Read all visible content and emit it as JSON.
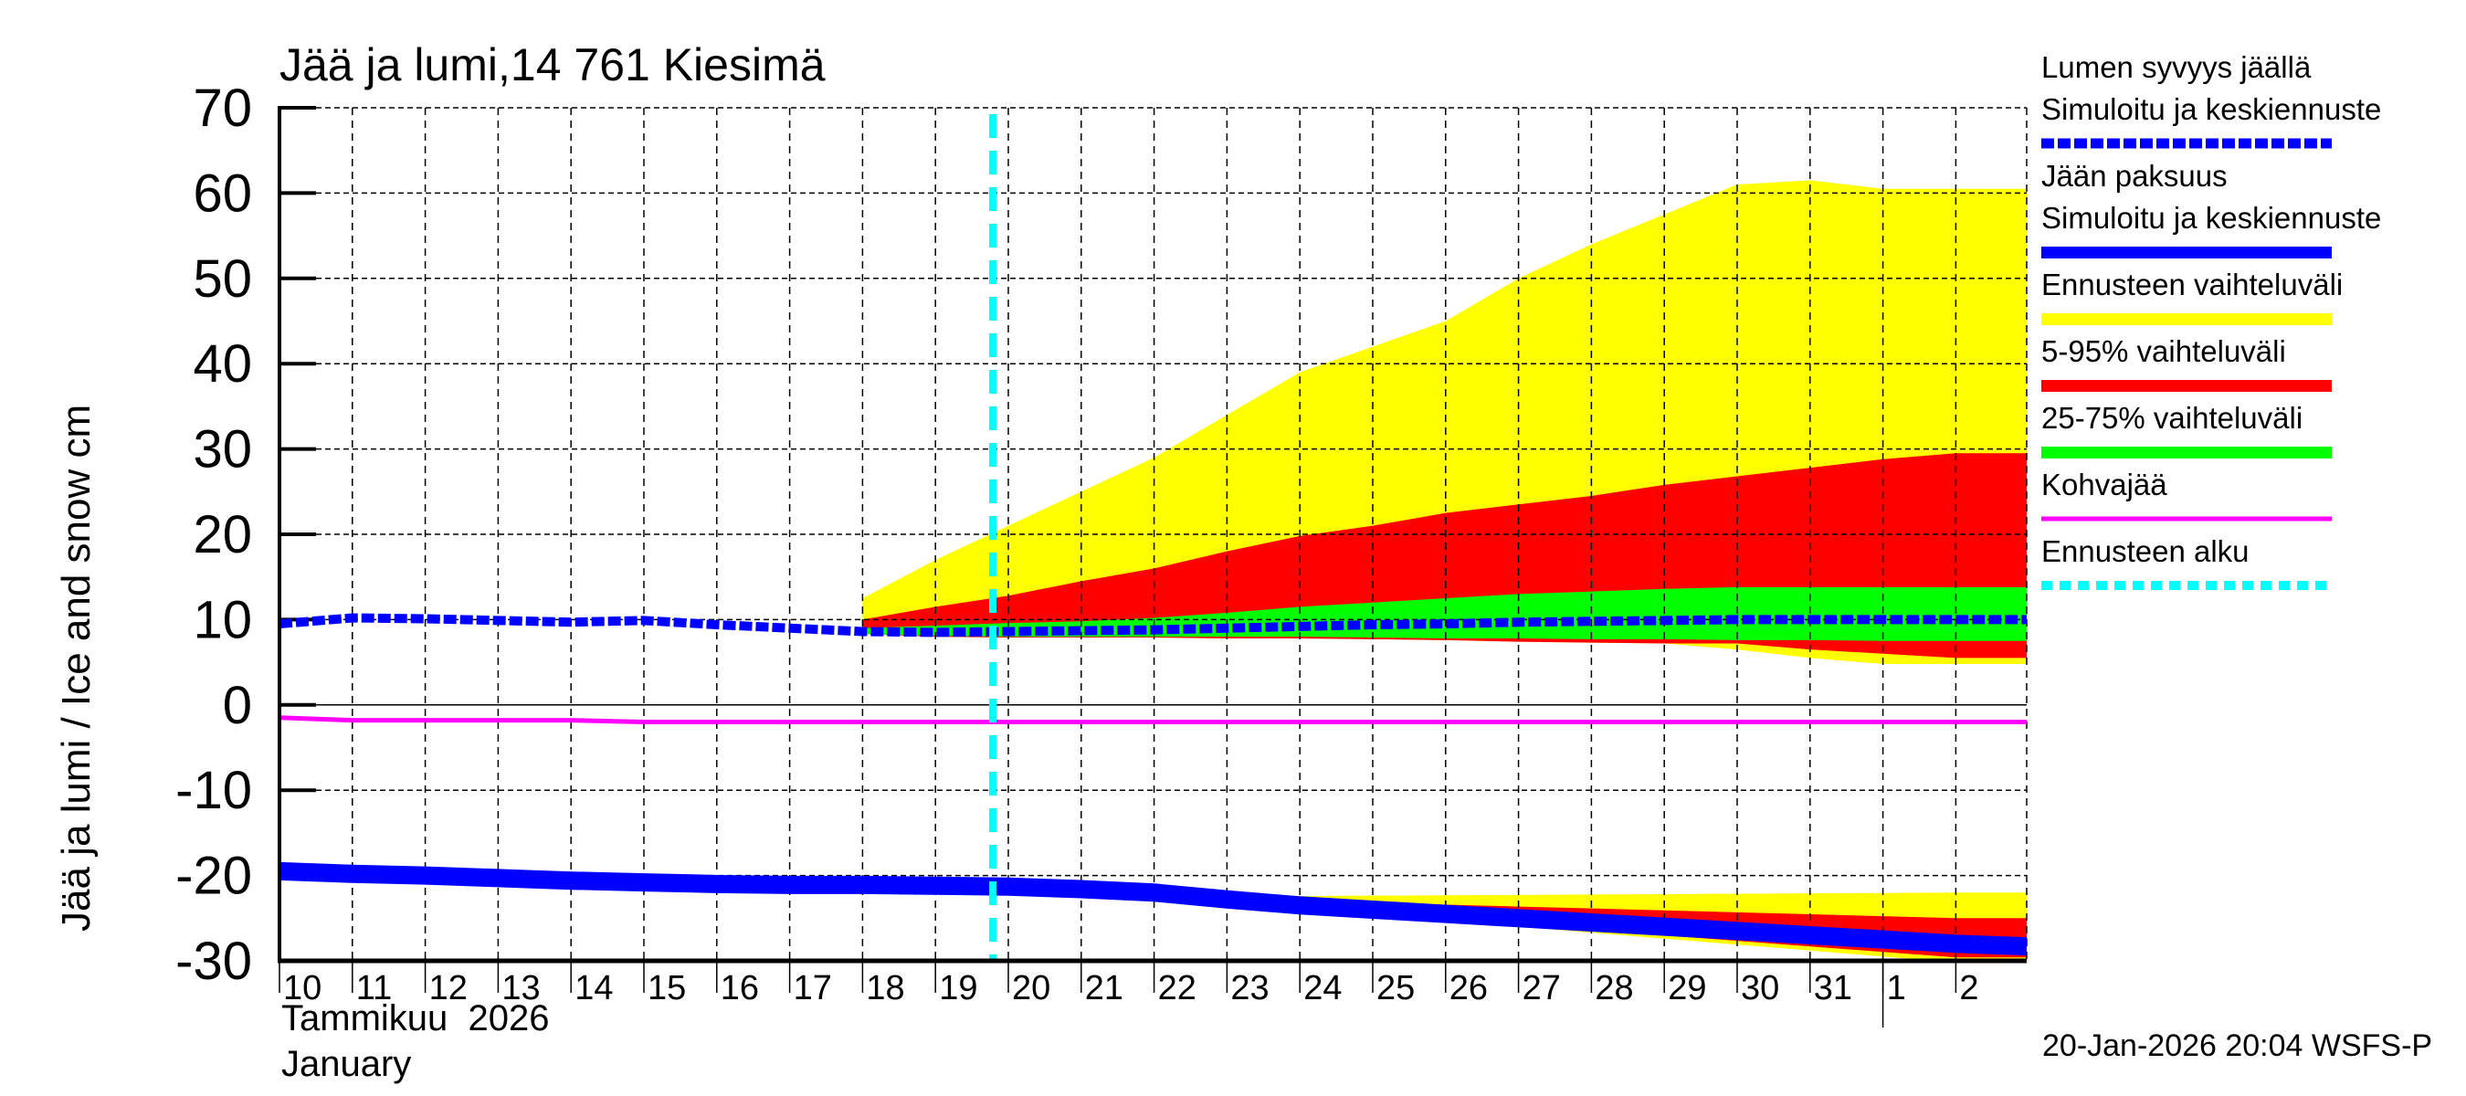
{
  "title": "Jää ja lumi,14 761 Kiesimä",
  "y_axis_label": "Jää ja lumi / Ice and snow    cm",
  "x_axis": {
    "month_fi": "Tammikuu  2026",
    "month_en": "January"
  },
  "timestamp": "20-Jan-2026 20:04 WSFS-P",
  "legend": [
    {
      "label1": "Lumen syvyys jäällä",
      "label2": "Simuloitu ja keskiennuste",
      "color": "#0000ff",
      "style": "dotted"
    },
    {
      "label1": "Jään paksuus",
      "label2": "Simuloitu ja keskiennuste",
      "color": "#0000ff",
      "style": "solid"
    },
    {
      "label1": "Ennusteen vaihteluväli",
      "color": "#ffff00",
      "style": "solid"
    },
    {
      "label1": "5-95% vaihteluväli",
      "color": "#ff0000",
      "style": "solid"
    },
    {
      "label1": "25-75% vaihteluväli",
      "color": "#00ff00",
      "style": "solid"
    },
    {
      "label1": "Kohvajää",
      "color": "#ff00ff",
      "style": "thin"
    },
    {
      "label1": "Ennusteen alku",
      "color": "#00ffff",
      "style": "dashed"
    }
  ],
  "chart_data": {
    "type": "area",
    "title": "Jää ja lumi,14 761 Kiesimä",
    "xlabel": "Tammikuu 2026 / January",
    "ylabel": "Jää ja lumi / Ice and snow cm",
    "ylim": [
      -30,
      70
    ],
    "yticks": [
      70,
      60,
      50,
      40,
      30,
      20,
      10,
      0,
      -10,
      -20,
      -30
    ],
    "grid": true,
    "legend_position": "right",
    "x": [
      "10",
      "11",
      "12",
      "13",
      "14",
      "15",
      "16",
      "17",
      "18",
      "19",
      "20",
      "21",
      "22",
      "23",
      "24",
      "25",
      "26",
      "27",
      "28",
      "29",
      "30",
      "31",
      "1",
      "2"
    ],
    "forecast_start": "20",
    "series": [
      {
        "name": "Lumen syvyys jäällä (Simuloitu ja keskiennuste)",
        "values": [
          9.5,
          10.2,
          10.1,
          9.9,
          9.7,
          9.9,
          9.4,
          9.0,
          8.6,
          8.5,
          8.6,
          8.7,
          8.8,
          9.0,
          9.2,
          9.4,
          9.5,
          9.7,
          9.8,
          9.9,
          10.0,
          10.0,
          10.0,
          10.0
        ]
      },
      {
        "name": "Jään paksuus (Simuloitu ja keskiennuste)",
        "values": [
          -19.5,
          -19.8,
          -20.0,
          -20.3,
          -20.6,
          -20.8,
          -21.0,
          -21.1,
          -21.1,
          -21.2,
          -21.3,
          -21.6,
          -22.0,
          -22.8,
          -23.5,
          -24.0,
          -24.5,
          -25.0,
          -25.5,
          -26.0,
          -26.5,
          -27.0,
          -27.5,
          -28.0
        ]
      },
      {
        "name": "Kohvajää",
        "values": [
          -1.5,
          -1.8,
          -1.8,
          -1.8,
          -1.8,
          -2.0,
          -2.0,
          -2.0,
          -2.0,
          -2.0,
          -2.0,
          -2.0,
          -2.0,
          -2.0,
          -2.0,
          -2.0,
          -2.0,
          -2.0,
          -2.0,
          -2.0,
          -2.0,
          -2.0,
          -2.0,
          -2.0
        ]
      },
      {
        "name": "Lumi: Ennusteen vaihteluväli (max)",
        "values": [
          null,
          null,
          null,
          null,
          null,
          null,
          null,
          null,
          12.5,
          17,
          21,
          25,
          29,
          34,
          39,
          42,
          45,
          50,
          54,
          57.5,
          61,
          61.5,
          60.5,
          60.5
        ]
      },
      {
        "name": "Lumi: 5-95% (upper)",
        "values": [
          null,
          null,
          null,
          null,
          null,
          null,
          null,
          null,
          10,
          11.5,
          12.8,
          14.5,
          16,
          18,
          19.8,
          21,
          22.5,
          23.5,
          24.5,
          25.8,
          26.8,
          27.8,
          28.8,
          29.5
        ]
      },
      {
        "name": "Lumi: 25-75% (upper)",
        "values": [
          null,
          null,
          null,
          null,
          null,
          null,
          null,
          null,
          9,
          9.3,
          9.6,
          9.8,
          10.2,
          10.8,
          11.5,
          12,
          12.5,
          13,
          13.3,
          13.6,
          13.8,
          13.8,
          13.8,
          13.8
        ]
      },
      {
        "name": "Lumi: 25-75% (lower)",
        "values": [
          null,
          null,
          null,
          null,
          null,
          null,
          null,
          null,
          8.3,
          8.1,
          8.0,
          8.0,
          8.0,
          8.0,
          8.0,
          7.9,
          7.8,
          7.8,
          7.7,
          7.7,
          7.6,
          7.6,
          7.5,
          7.5
        ]
      },
      {
        "name": "Lumi: 5-95% (lower)",
        "values": [
          null,
          null,
          null,
          null,
          null,
          null,
          null,
          null,
          8.3,
          8.0,
          7.9,
          7.9,
          7.9,
          7.8,
          7.8,
          7.7,
          7.6,
          7.4,
          7.3,
          7.2,
          7.2,
          6.5,
          6.0,
          5.5
        ]
      },
      {
        "name": "Lumi: Ennusteen vaihteluväli (min)",
        "values": [
          null,
          null,
          null,
          null,
          null,
          null,
          null,
          null,
          8.3,
          8.0,
          7.9,
          7.9,
          7.9,
          7.8,
          7.8,
          7.7,
          7.6,
          7.4,
          7.3,
          7.2,
          6.5,
          5.5,
          4.8,
          4.8
        ]
      }
    ]
  }
}
